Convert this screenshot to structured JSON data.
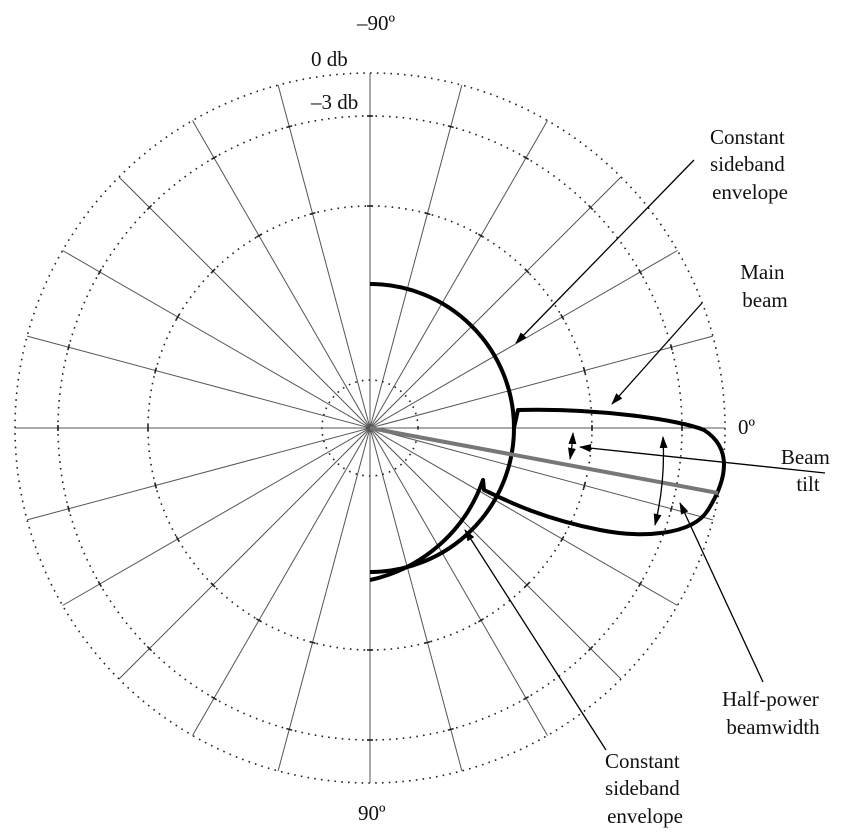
{
  "labels": {
    "top_angle": "–90º",
    "bottom_angle": "90º",
    "right_angle": "0º",
    "level_0db": "0 db",
    "level_3db": "–3 db"
  },
  "callouts": {
    "envelope_upper": [
      "Constant",
      "sideband",
      "envelope"
    ],
    "main_beam": [
      "Main",
      "beam"
    ],
    "beam_tilt": [
      "Beam",
      "tilt"
    ],
    "half_power": [
      "Half-power",
      "beamwidth"
    ],
    "envelope_lower": [
      "Constant",
      "sideband",
      "envelope"
    ]
  },
  "colors": {
    "pattern": "#000000",
    "tilt_line": "#777777",
    "spokes": "#555555"
  }
}
